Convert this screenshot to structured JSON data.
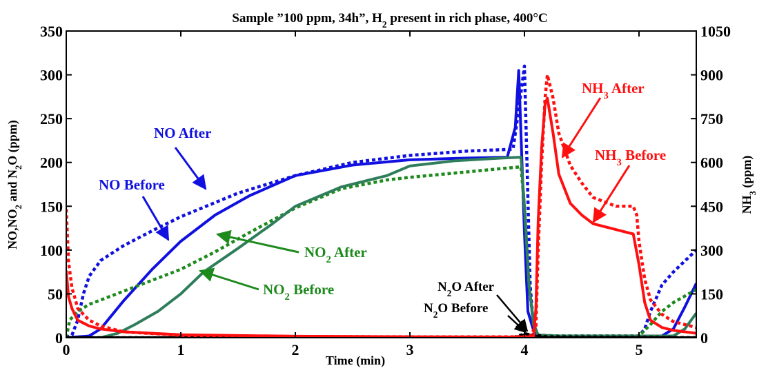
{
  "chart_data": {
    "type": "line",
    "title_parts": [
      "Sample ”100 ppm, 34h”, H",
      "2",
      " present in rich phase, 400°C"
    ],
    "xlabel": "Time (min)",
    "ylabel_left_parts": [
      "NO,NO",
      "2",
      " and N",
      "2",
      "O (ppm)"
    ],
    "ylabel_right_parts": [
      "NH",
      "3",
      "  (ppm)"
    ],
    "xlim": [
      0,
      5.5
    ],
    "ylim_left": [
      0,
      350
    ],
    "ylim_right": [
      0,
      1050
    ],
    "x_ticks": [
      "0",
      "1",
      "2",
      "3",
      "4",
      "5"
    ],
    "y_left_ticks": [
      "0",
      "50",
      "100",
      "150",
      "200",
      "250",
      "300",
      "350"
    ],
    "y_right_ticks": [
      "0",
      "150",
      "300",
      "450",
      "600",
      "750",
      "900",
      "1050"
    ],
    "grid": false,
    "series": [
      {
        "name": "NO After",
        "color": "#1010e0",
        "style": "dotted",
        "axis": "left",
        "x": [
          0,
          0.05,
          0.1,
          0.15,
          0.2,
          0.3,
          0.5,
          0.75,
          1.0,
          1.5,
          2.0,
          2.5,
          3.0,
          3.5,
          3.9,
          3.95,
          4.0,
          4.05,
          4.08,
          4.1,
          4.15,
          4.3,
          5.0,
          5.05,
          5.1,
          5.2,
          5.3,
          5.5
        ],
        "y": [
          0,
          3,
          20,
          50,
          70,
          88,
          105,
          122,
          138,
          165,
          185,
          200,
          208,
          213,
          215,
          260,
          310,
          60,
          10,
          3,
          2,
          2,
          2,
          10,
          30,
          60,
          75,
          100
        ]
      },
      {
        "name": "NO Before",
        "color": "#1010e0",
        "style": "solid",
        "axis": "left",
        "x": [
          0,
          0.2,
          0.3,
          0.5,
          0.75,
          1.0,
          1.3,
          1.6,
          2.0,
          2.5,
          3.0,
          3.5,
          3.85,
          3.92,
          3.95,
          4.0,
          4.03,
          4.08,
          4.1,
          4.15,
          4.3,
          5.0,
          5.2,
          5.3,
          5.4,
          5.5
        ],
        "y": [
          0,
          2,
          10,
          42,
          78,
          110,
          140,
          162,
          185,
          197,
          203,
          205,
          206,
          240,
          305,
          120,
          30,
          8,
          3,
          2,
          2,
          2,
          2,
          10,
          35,
          62
        ]
      },
      {
        "name": "NO2 After",
        "color": "#1e8a1e",
        "style": "dotted",
        "axis": "left",
        "x": [
          0,
          0.03,
          0.1,
          0.2,
          0.4,
          0.7,
          1.0,
          1.3,
          1.6,
          2.0,
          2.4,
          2.8,
          3.0,
          3.4,
          3.8,
          3.97,
          4.0,
          4.04,
          4.08,
          4.12,
          4.3,
          5.0,
          5.1,
          5.2,
          5.3,
          5.5
        ],
        "y": [
          0,
          20,
          30,
          38,
          48,
          63,
          78,
          98,
          120,
          148,
          170,
          180,
          183,
          188,
          193,
          195,
          150,
          60,
          15,
          3,
          2,
          2,
          15,
          30,
          40,
          55
        ]
      },
      {
        "name": "NO2 Before",
        "color": "#2e7d5b",
        "style": "solid",
        "axis": "left",
        "x": [
          0,
          0.3,
          0.45,
          0.6,
          0.8,
          1.0,
          1.2,
          1.5,
          1.8,
          2.0,
          2.4,
          2.8,
          3.0,
          3.4,
          3.8,
          3.97,
          4.0,
          4.04,
          4.08,
          4.12,
          4.3,
          5.0,
          5.3,
          5.4,
          5.5
        ],
        "y": [
          0,
          0,
          5,
          15,
          30,
          50,
          75,
          102,
          130,
          150,
          172,
          185,
          196,
          202,
          205,
          206,
          150,
          60,
          15,
          3,
          2,
          2,
          2,
          10,
          28
        ]
      },
      {
        "name": "N2O After",
        "color": "#000000",
        "style": "dotted",
        "axis": "left",
        "x": [
          0,
          3.9,
          3.97,
          4.02,
          4.08,
          4.2,
          5.5
        ],
        "y": [
          0,
          0,
          3,
          4,
          3,
          1,
          0
        ]
      },
      {
        "name": "N2O Before",
        "color": "#000000",
        "style": "solid",
        "axis": "left",
        "x": [
          0,
          3.9,
          3.97,
          4.02,
          4.08,
          4.2,
          5.5
        ],
        "y": [
          0,
          0,
          2,
          4,
          2,
          0,
          0
        ]
      },
      {
        "name": "NH3 After",
        "color": "#ff1010",
        "style": "dotted",
        "axis": "right",
        "x": [
          0,
          0.02,
          0.05,
          0.08,
          0.1,
          0.15,
          0.2,
          0.3,
          0.5,
          1.0,
          2.0,
          3.0,
          3.9,
          4.05,
          4.1,
          4.12,
          4.15,
          4.18,
          4.2,
          4.25,
          4.3,
          4.4,
          4.5,
          4.6,
          4.8,
          4.95,
          4.98,
          5.0,
          5.05,
          5.1,
          5.2,
          5.3,
          5.5
        ],
        "y": [
          440,
          260,
          170,
          130,
          100,
          80,
          60,
          40,
          20,
          8,
          4,
          3,
          3,
          5,
          40,
          300,
          600,
          820,
          900,
          820,
          700,
          590,
          530,
          480,
          450,
          450,
          420,
          330,
          200,
          130,
          80,
          55,
          35
        ]
      },
      {
        "name": "NH3 Before",
        "color": "#ff1010",
        "style": "solid",
        "axis": "right",
        "x": [
          0,
          0.02,
          0.05,
          0.08,
          0.1,
          0.15,
          0.2,
          0.3,
          0.5,
          1.0,
          2.0,
          3.0,
          4.0,
          4.08,
          4.1,
          4.12,
          4.15,
          4.18,
          4.2,
          4.25,
          4.3,
          4.4,
          4.5,
          4.6,
          4.8,
          4.9,
          4.95,
          5.0,
          5.05,
          5.1,
          5.2,
          5.3,
          5.5
        ],
        "y": [
          230,
          140,
          100,
          75,
          60,
          50,
          40,
          30,
          20,
          10,
          5,
          3,
          2,
          5,
          100,
          400,
          650,
          800,
          820,
          700,
          560,
          460,
          420,
          390,
          370,
          360,
          355,
          250,
          120,
          60,
          35,
          25,
          15
        ]
      }
    ],
    "annotations": [
      {
        "parts": [
          "NO After"
        ],
        "color": "#1010e0"
      },
      {
        "parts": [
          "NO Before"
        ],
        "color": "#1010e0"
      },
      {
        "parts": [
          "NO",
          "2",
          " After"
        ],
        "color": "#1e8a1e"
      },
      {
        "parts": [
          "NO",
          "2",
          " Before"
        ],
        "color": "#1e8a1e"
      },
      {
        "parts": [
          "N",
          "2",
          "O After"
        ],
        "color": "#000000"
      },
      {
        "parts": [
          "N",
          "2",
          "O Before"
        ],
        "color": "#000000"
      },
      {
        "parts": [
          "NH",
          "3",
          " After"
        ],
        "color": "#ff1010"
      },
      {
        "parts": [
          "NH",
          "3",
          " Before"
        ],
        "color": "#ff1010"
      }
    ]
  }
}
